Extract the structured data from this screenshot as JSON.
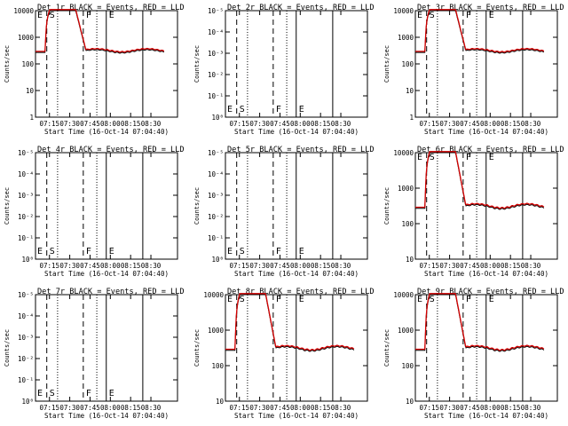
{
  "x_ticks": [
    "07:15",
    "07:30",
    "07:45",
    "08:00",
    "08:15",
    "08:30"
  ],
  "xlabel": "Start Time (16-Oct-14 07:04:40)",
  "ylabel": "Counts/sec",
  "chart_data": [
    {
      "type": "line",
      "title": "Det 1r BLACK = Events, RED = LLD",
      "y_ticks": [
        "1",
        "10",
        "100",
        "1000",
        "10000"
      ],
      "panel_kind": "full",
      "markers": [
        {
          "label": "E",
          "x": "07:04"
        },
        {
          "label": "S",
          "x": "07:13"
        },
        {
          "label": "F",
          "x": "07:40"
        },
        {
          "label": "E",
          "x": "07:57"
        }
      ]
    },
    {
      "type": "line",
      "title": "Det 2r BLACK = Events, RED = LLD",
      "y_ticks": [
        "10⁰",
        "10⁻¹",
        "10⁻²",
        "10⁻³",
        "10⁻⁴",
        "10⁻⁵"
      ],
      "panel_kind": "empty",
      "markers": [
        {
          "label": "E",
          "x": "07:04"
        },
        {
          "label": "S",
          "x": "07:13"
        },
        {
          "label": "F",
          "x": "07:40"
        },
        {
          "label": "E",
          "x": "07:57"
        }
      ]
    },
    {
      "type": "line",
      "title": "Det 3r BLACK = Events, RED = LLD",
      "y_ticks": [
        "1",
        "10",
        "100",
        "1000",
        "10000"
      ],
      "panel_kind": "full",
      "markers": [
        {
          "label": "E",
          "x": "07:04"
        },
        {
          "label": "S",
          "x": "07:13"
        },
        {
          "label": "F",
          "x": "07:40"
        },
        {
          "label": "E",
          "x": "07:57"
        }
      ]
    },
    {
      "type": "line",
      "title": "Det 4r BLACK = Events, RED = LLD",
      "y_ticks": [
        "10⁰",
        "10⁻¹",
        "10⁻²",
        "10⁻³",
        "10⁻⁴",
        "10⁻⁵"
      ],
      "panel_kind": "empty",
      "markers": [
        {
          "label": "E",
          "x": "07:04"
        },
        {
          "label": "S",
          "x": "07:13"
        },
        {
          "label": "F",
          "x": "07:40"
        },
        {
          "label": "E",
          "x": "07:57"
        }
      ]
    },
    {
      "type": "line",
      "title": "Det 5r BLACK = Events, RED = LLD",
      "y_ticks": [
        "10⁰",
        "10⁻¹",
        "10⁻²",
        "10⁻³",
        "10⁻⁴",
        "10⁻⁵"
      ],
      "panel_kind": "empty",
      "markers": [
        {
          "label": "E",
          "x": "07:04"
        },
        {
          "label": "S",
          "x": "07:13"
        },
        {
          "label": "F",
          "x": "07:40"
        },
        {
          "label": "E",
          "x": "07:57"
        }
      ]
    },
    {
      "type": "line",
      "title": "Det 6r BLACK = Events, RED = LLD",
      "y_ticks": [
        "10",
        "100",
        "1000",
        "10000"
      ],
      "panel_kind": "full",
      "markers": [
        {
          "label": "E",
          "x": "07:04"
        },
        {
          "label": "S",
          "x": "07:13"
        },
        {
          "label": "F",
          "x": "07:40"
        },
        {
          "label": "E",
          "x": "07:57"
        }
      ]
    },
    {
      "type": "line",
      "title": "Det 7r BLACK = Events, RED = LLD",
      "y_ticks": [
        "10⁰",
        "10⁻¹",
        "10⁻²",
        "10⁻³",
        "10⁻⁴",
        "10⁻⁵"
      ],
      "panel_kind": "empty",
      "markers": [
        {
          "label": "E",
          "x": "07:04"
        },
        {
          "label": "S",
          "x": "07:13"
        },
        {
          "label": "F",
          "x": "07:40"
        },
        {
          "label": "E",
          "x": "07:57"
        }
      ]
    },
    {
      "type": "line",
      "title": "Det 8r BLACK = Events, RED = LLD",
      "y_ticks": [
        "10",
        "100",
        "1000",
        "10000"
      ],
      "panel_kind": "full",
      "markers": [
        {
          "label": "E",
          "x": "07:04"
        },
        {
          "label": "S",
          "x": "07:13"
        },
        {
          "label": "F",
          "x": "07:40"
        },
        {
          "label": "E",
          "x": "07:57"
        }
      ]
    },
    {
      "type": "line",
      "title": "Det 9r BLACK = Events, RED = LLD",
      "y_ticks": [
        "10",
        "100",
        "1000",
        "10000"
      ],
      "panel_kind": "full",
      "markers": [
        {
          "label": "E",
          "x": "07:04"
        },
        {
          "label": "S",
          "x": "07:13"
        },
        {
          "label": "F",
          "x": "07:40"
        },
        {
          "label": "E",
          "x": "07:57"
        }
      ]
    }
  ],
  "colors": {
    "events": "#000000",
    "lld": "#d40000"
  }
}
